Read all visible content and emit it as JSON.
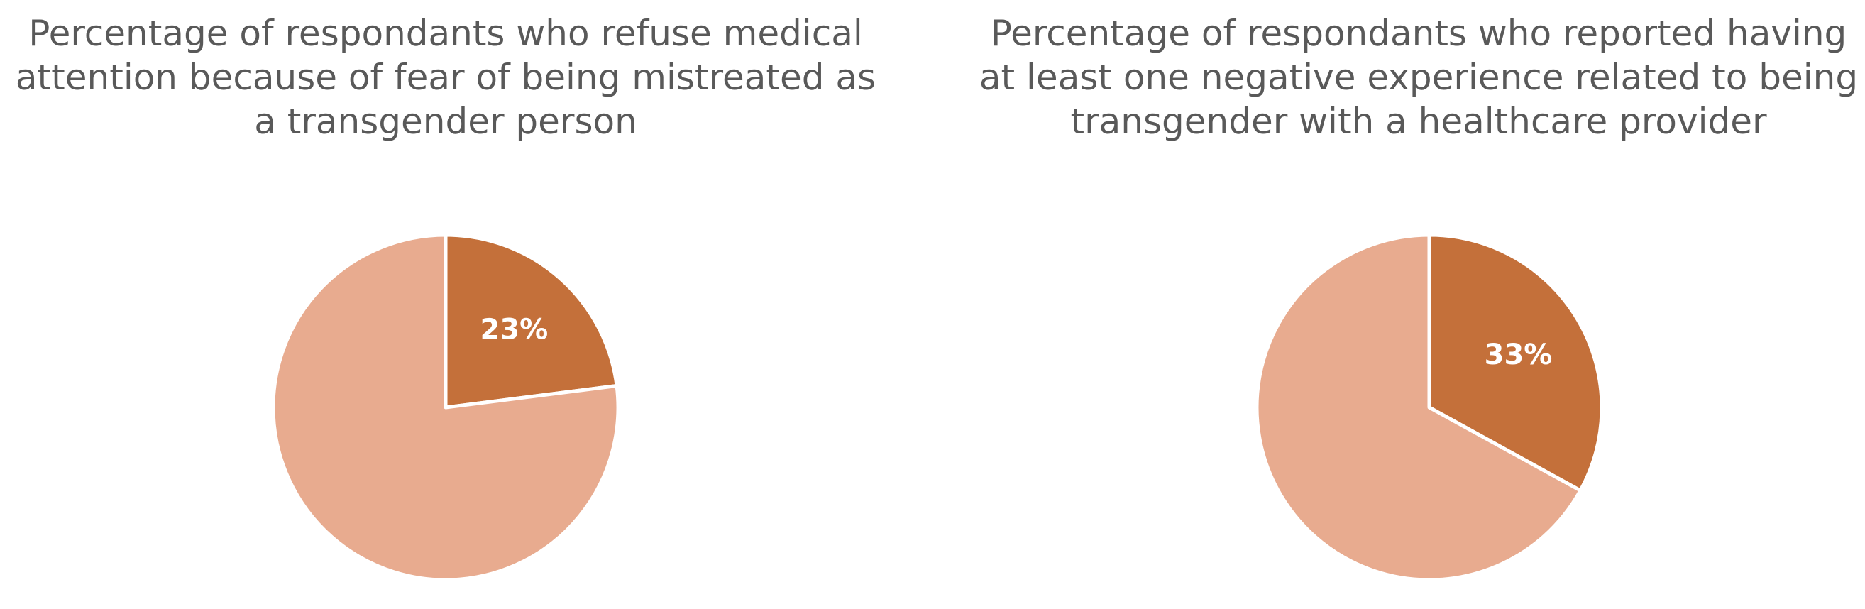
{
  "chart_data": [
    {
      "type": "pie",
      "title": "Percentage of respondants who refuse medical attention because of fear of being mistreated as a transgender person",
      "slices": [
        {
          "value": 23,
          "label": "23%",
          "color": "#C4703A"
        },
        {
          "value": 77,
          "label": "",
          "color": "#E8AB8F"
        }
      ]
    },
    {
      "type": "pie",
      "title": "Percentage of respondants who reported having at least one negative experience related to being transgender with a healthcare provider",
      "slices": [
        {
          "value": 33,
          "label": "33%",
          "color": "#C4703A"
        },
        {
          "value": 67,
          "label": "",
          "color": "#E8AB8F"
        }
      ]
    }
  ]
}
